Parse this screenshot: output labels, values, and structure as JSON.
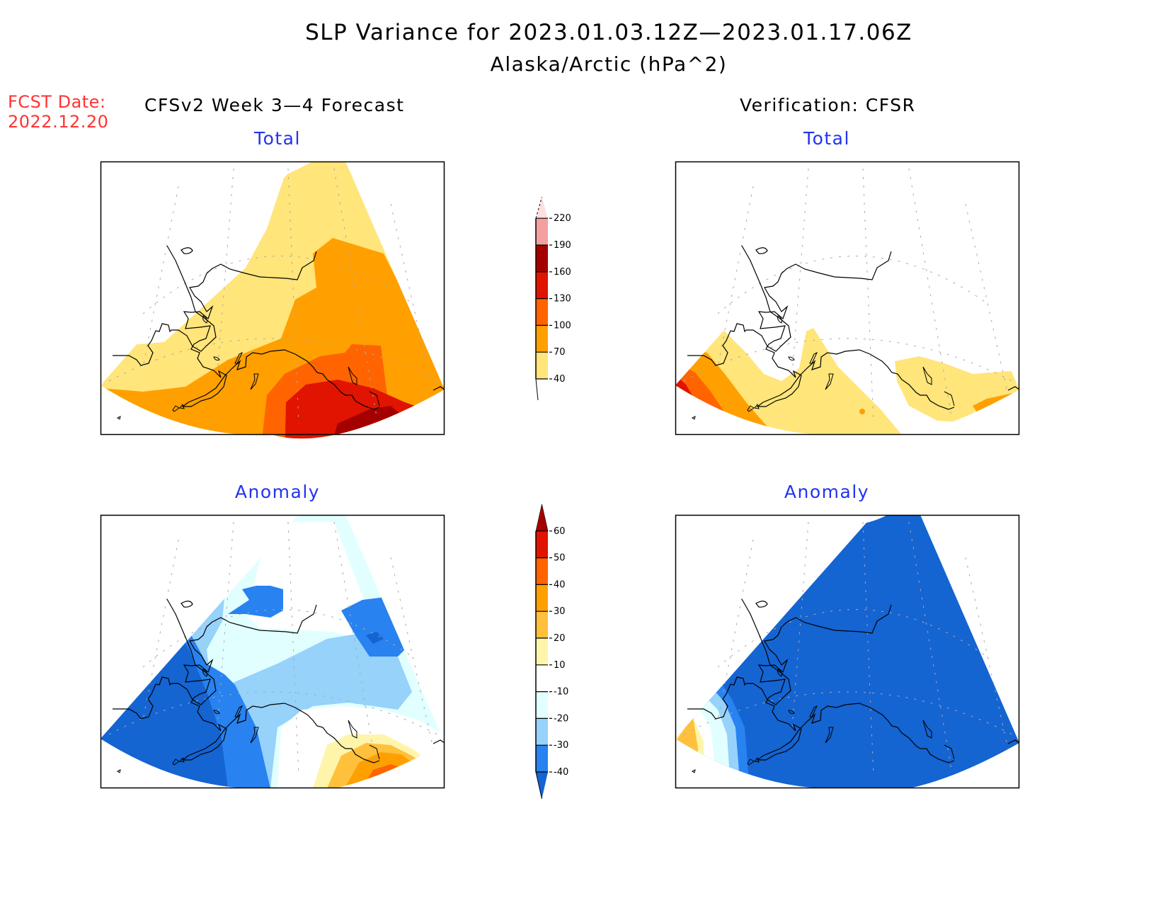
{
  "header": {
    "title": "SLP Variance for 2023.01.03.12Z—2023.01.17.06Z",
    "subtitle": "Alaska/Arctic (hPa^2)",
    "fcst_label": "FCST Date:",
    "fcst_date": "2022.12.20",
    "left_column": "CFSv2 Week 3—4 Forecast",
    "right_column": "Verification: CFSR"
  },
  "panels": {
    "forecast_total": {
      "title": "Total"
    },
    "verification_total": {
      "title": "Total"
    },
    "forecast_anomaly": {
      "title": "Anomaly"
    },
    "verification_anomaly": {
      "title": "Anomaly"
    }
  },
  "colors": {
    "total": [
      "#ffe57a",
      "#ffa000",
      "#ff6400",
      "#e01400",
      "#a50000",
      "#f4a0a0",
      "#ffe0e0"
    ],
    "anomaly": [
      "#1464d2",
      "#2882f0",
      "#96d2fa",
      "#e1ffff",
      "#ffffff",
      "#fff5aa",
      "#ffc03c",
      "#ffa000",
      "#ff6400",
      "#e01400",
      "#a50000"
    ]
  },
  "chart_data": [
    {
      "type": "heatmap",
      "name": "total_colorbar",
      "title": "Total",
      "levels": [
        40,
        70,
        100,
        130,
        160,
        190,
        220
      ],
      "tick_labels": [
        "40",
        "70",
        "100",
        "130",
        "160",
        "190",
        "220"
      ]
    },
    {
      "type": "heatmap",
      "name": "anomaly_colorbar",
      "title": "Anomaly",
      "levels": [
        -40,
        -30,
        -20,
        -10,
        10,
        20,
        30,
        40,
        50,
        60
      ],
      "tick_labels": [
        "-40",
        "-30",
        "-20",
        "-10",
        "10",
        "20",
        "30",
        "40",
        "50",
        "60"
      ]
    }
  ]
}
